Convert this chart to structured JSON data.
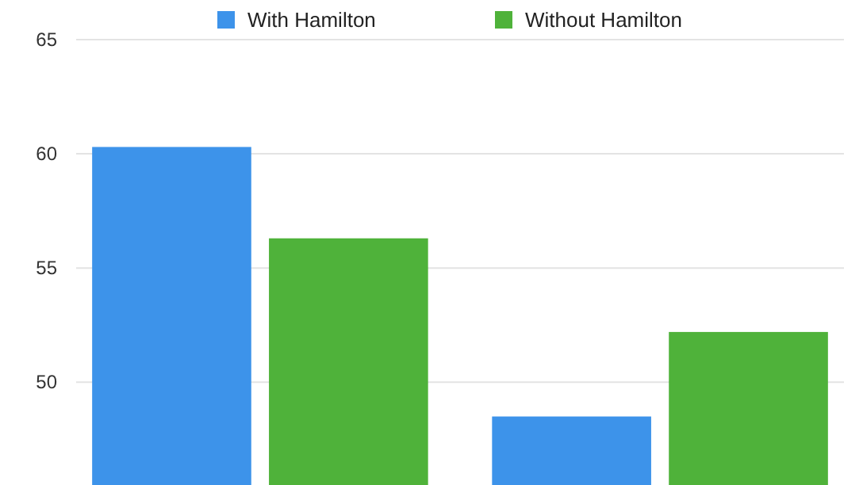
{
  "chart_data": {
    "type": "bar",
    "categories": [
      null,
      null
    ],
    "series": [
      {
        "name": "With Hamilton",
        "color": "#3d93ea",
        "values": [
          60.3,
          48.5
        ]
      },
      {
        "name": "Without Hamilton",
        "color": "#4fb23a",
        "values": [
          56.3,
          52.2
        ]
      }
    ],
    "ylim": [
      45.5,
      65
    ],
    "yticks": [
      50,
      55,
      60,
      65
    ],
    "grid": "y",
    "legend": "top"
  }
}
